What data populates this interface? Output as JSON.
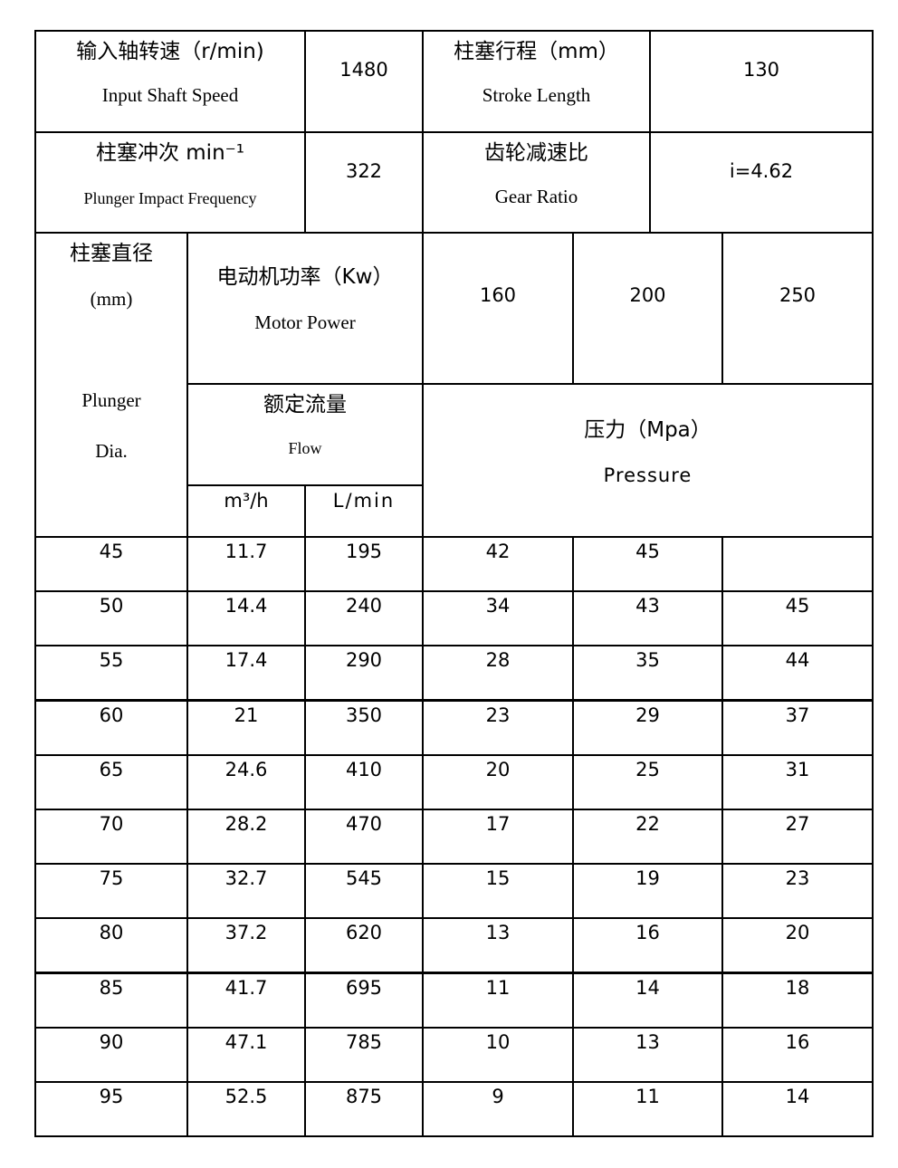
{
  "specs": {
    "input_speed": {
      "cn": "输入轴转速（r/min)",
      "en": "Input Shaft Speed",
      "value": "1480"
    },
    "stroke": {
      "cn": "柱塞行程（mm）",
      "en": "Stroke Length",
      "value": "130"
    },
    "frequency": {
      "cn": "柱塞冲次 min⁻¹",
      "en": "Plunger Impact Frequency",
      "value": "322"
    },
    "gear": {
      "cn": "齿轮减速比",
      "en": "Gear Ratio",
      "value": "i=4.62"
    }
  },
  "header": {
    "plunger_cn": "柱塞直径",
    "plunger_unit": "(mm)",
    "plunger_en1": "Plunger",
    "plunger_en2": "Dia.",
    "motor_cn": "电动机功率（Kw）",
    "motor_en": "Motor Power",
    "powers": [
      "160",
      "200",
      "250"
    ],
    "flow_cn": "额定流量",
    "flow_en": "Flow",
    "flow_unit1": "m³/h",
    "flow_unit2": "L/min",
    "pressure_cn": "压力（Mpa）",
    "pressure_en": "Pressure"
  },
  "rows": [
    [
      "45",
      "11.7",
      "195",
      "42",
      "45",
      ""
    ],
    [
      "50",
      "14.4",
      "240",
      "34",
      "43",
      "45"
    ],
    [
      "55",
      "17.4",
      "290",
      "28",
      "35",
      "44"
    ],
    [
      "60",
      "21",
      "350",
      "23",
      "29",
      "37"
    ],
    [
      "65",
      "24.6",
      "410",
      "20",
      "25",
      "31"
    ],
    [
      "70",
      "28.2",
      "470",
      "17",
      "22",
      "27"
    ],
    [
      "75",
      "32.7",
      "545",
      "15",
      "19",
      "23"
    ],
    [
      "80",
      "37.2",
      "620",
      "13",
      "16",
      "20"
    ],
    [
      "85",
      "41.7",
      "695",
      "11",
      "14",
      "18"
    ],
    [
      "90",
      "47.1",
      "785",
      "10",
      "13",
      "16"
    ],
    [
      "95",
      "52.5",
      "875",
      "9",
      "11",
      "14"
    ]
  ]
}
